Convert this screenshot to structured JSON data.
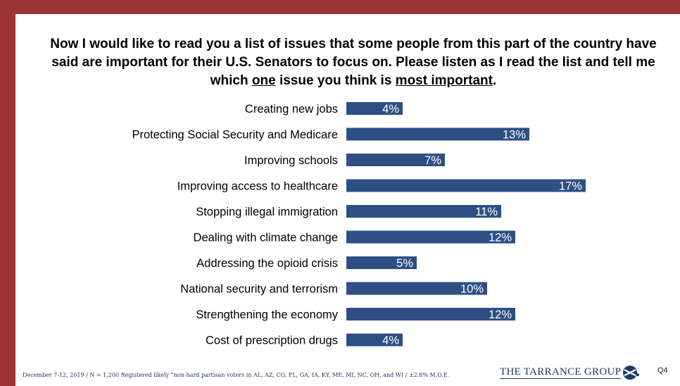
{
  "title": {
    "pre": "Now I would like to read you a list of issues that some people from this part of the country have said are important for their U.S. Senators to focus on.  Please listen as I read the list and tell me which ",
    "u1": "one",
    "mid": " issue you think is ",
    "u2": "most important",
    "post": "."
  },
  "chart_data": {
    "type": "bar",
    "orientation": "horizontal",
    "categories": [
      "Creating new jobs",
      "Protecting Social Security and Medicare",
      "Improving schools",
      "Improving access to healthcare",
      "Stopping illegal immigration",
      "Dealing with climate change",
      "Addressing the opioid crisis",
      "National security and terrorism",
      "Strengthening the economy",
      "Cost of prescription drugs"
    ],
    "values": [
      4,
      13,
      7,
      17,
      11,
      12,
      5,
      10,
      12,
      4
    ],
    "value_labels": [
      "4%",
      "13%",
      "7%",
      "17%",
      "11%",
      "12%",
      "5%",
      "10%",
      "12%",
      "4%"
    ],
    "unit": "%",
    "bar_color": "#2e4f84",
    "label_color": "#ffffff",
    "grid": false,
    "legend": "none"
  },
  "footer": {
    "note": "December 7-12, 2019 / N = 1,200 Registered likely “non-hard partisan voters in AL, AZ, CO, FL, GA, IA, KY, ME, MI, NC, OH, and WI / ±2.8% M.O.E.",
    "brand": "THE TARRANCE GROUP",
    "page": "Q4"
  },
  "colors": {
    "frame": "#9b3533",
    "brand": "#1f3864"
  }
}
